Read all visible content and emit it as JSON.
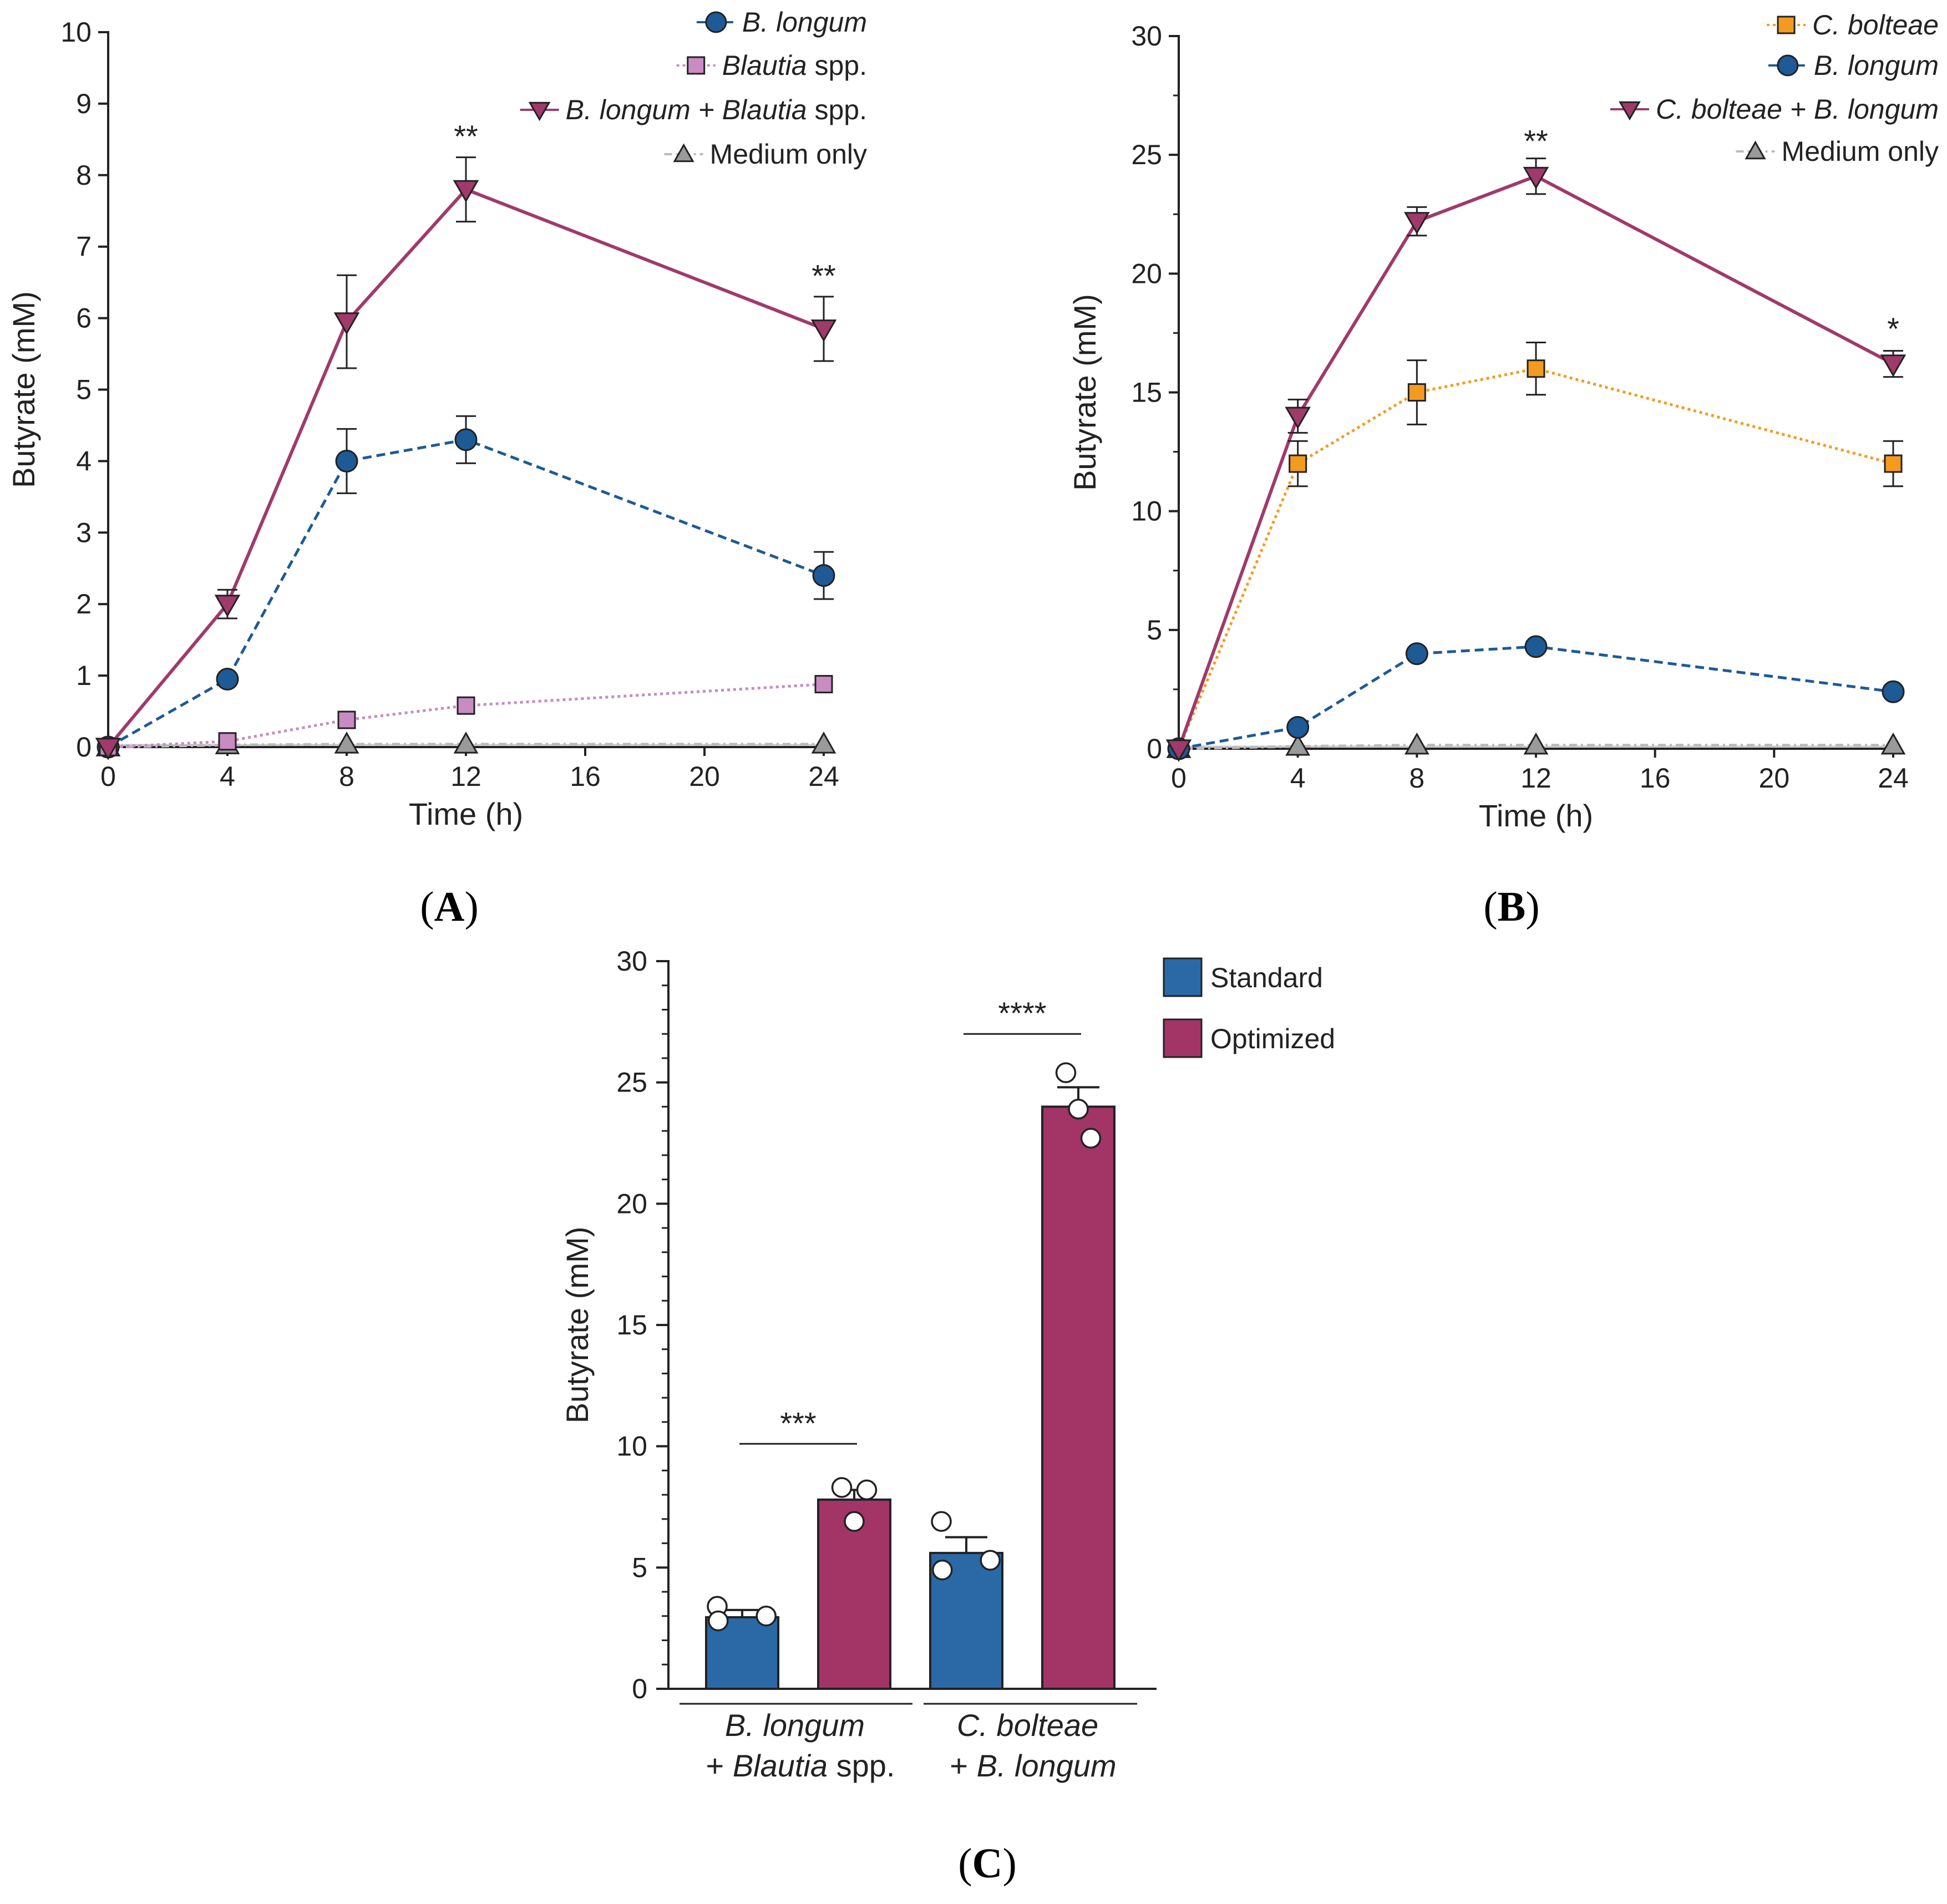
{
  "panels": {
    "A": {
      "label_open": "(",
      "label_letter": "A",
      "label_close": ")"
    },
    "B": {
      "label_open": "(",
      "label_letter": "B",
      "label_close": ")"
    },
    "C": {
      "label_open": "(",
      "label_letter": "C",
      "label_close": ")"
    }
  },
  "chart_data": [
    {
      "panel": "A",
      "type": "line",
      "xlabel": "Time (h)",
      "ylabel": "Butyrate (mM)",
      "xlim": [
        0,
        24
      ],
      "ylim": [
        0,
        10
      ],
      "xticks": [
        0,
        4,
        8,
        12,
        16,
        20,
        24
      ],
      "yticks": [
        0,
        1,
        2,
        3,
        4,
        5,
        6,
        7,
        8,
        9,
        10
      ],
      "legend_position": "top-right",
      "x": [
        0,
        4,
        8,
        12,
        24
      ],
      "series": [
        {
          "name_italic": "B. longum",
          "name_rest": "",
          "marker": "circle",
          "color": "#1d5a96",
          "dash": "dashed",
          "values": [
            0,
            0.95,
            4.0,
            4.3,
            2.4
          ],
          "errors": [
            0,
            0,
            0.45,
            0.33,
            0.33
          ]
        },
        {
          "name_italic": "Blautia",
          "name_rest": " spp.",
          "marker": "square",
          "color": "#c88bc2",
          "dash": "dotted",
          "values": [
            0,
            0.08,
            0.38,
            0.58,
            0.88
          ],
          "errors": [
            0,
            0,
            0,
            0,
            0
          ]
        },
        {
          "name_italic": "B. longum + Blautia",
          "name_rest": " spp.",
          "marker": "triangle-down",
          "color": "#a03a6a",
          "dash": "solid",
          "values": [
            0,
            2.0,
            5.95,
            7.8,
            5.85
          ],
          "errors": [
            0,
            0.2,
            0.65,
            0.45,
            0.45
          ]
        },
        {
          "name_italic": "",
          "name_rest": "Medium only",
          "marker": "triangle-up",
          "color": "#9a9a9a",
          "dash": "dashdot",
          "values": [
            0,
            0.03,
            0.04,
            0.04,
            0.04
          ],
          "errors": [
            0,
            0,
            0,
            0,
            0
          ]
        }
      ],
      "annotations": [
        {
          "x": 12,
          "y": 8.55,
          "text": "**"
        },
        {
          "x": 24,
          "y": 6.6,
          "text": "**"
        }
      ]
    },
    {
      "panel": "B",
      "type": "line",
      "xlabel": "Time (h)",
      "ylabel": "Butyrate (mM)",
      "xlim": [
        0,
        24
      ],
      "ylim": [
        0,
        30
      ],
      "xticks": [
        0,
        4,
        8,
        12,
        16,
        20,
        24
      ],
      "yticks": [
        0,
        5,
        10,
        15,
        20,
        25,
        30
      ],
      "legend_position": "top-right",
      "x": [
        0,
        4,
        8,
        12,
        24
      ],
      "series": [
        {
          "name_italic": "C. bolteae",
          "name_rest": "",
          "marker": "square",
          "color": "#f49a1e",
          "dash": "dotted",
          "values": [
            0,
            12.0,
            15.0,
            16.0,
            12.0
          ],
          "errors": [
            0,
            0.95,
            1.35,
            1.1,
            0.95
          ]
        },
        {
          "name_italic": "B. longum",
          "name_rest": "",
          "marker": "circle",
          "color": "#1d5a96",
          "dash": "dashed",
          "values": [
            0,
            0.9,
            4.0,
            4.3,
            2.4
          ],
          "errors": [
            0,
            0,
            0,
            0,
            0
          ]
        },
        {
          "name_italic": "C. bolteae + B. longum",
          "name_rest": "",
          "marker": "triangle-down",
          "color": "#a03a6a",
          "dash": "solid",
          "values": [
            0,
            14.0,
            22.2,
            24.1,
            16.2
          ],
          "errors": [
            0,
            0.7,
            0.6,
            0.75,
            0.55
          ]
        },
        {
          "name_italic": "",
          "name_rest": "Medium only",
          "marker": "triangle-up",
          "color": "#9a9a9a",
          "dash": "dashdot",
          "values": [
            0,
            0.1,
            0.15,
            0.15,
            0.15
          ],
          "errors": [
            0,
            0,
            0,
            0,
            0
          ]
        }
      ],
      "annotations": [
        {
          "x": 12,
          "y": 25.6,
          "text": "**"
        },
        {
          "x": 24,
          "y": 17.7,
          "text": "*"
        }
      ]
    },
    {
      "panel": "C",
      "type": "bar",
      "ylabel": "Butyrate (mM)",
      "ylim": [
        0,
        30
      ],
      "yticks": [
        0,
        5,
        10,
        15,
        20,
        25,
        30
      ],
      "legend_position": "top-right",
      "legend": [
        {
          "name": "Standard",
          "color": "#2a69a6"
        },
        {
          "name": "Optimized",
          "color": "#a33466"
        }
      ],
      "groups": [
        {
          "line1_italic": "B. longum",
          "line1_rest": "",
          "line2_prefix": "+ ",
          "line2_italic": "Blautia",
          "line2_rest": " spp.",
          "bars": [
            {
              "condition": "Standard",
              "value": 2.95,
              "error": 0.3,
              "points": [
                3.4,
                2.8,
                3.0
              ]
            },
            {
              "condition": "Optimized",
              "value": 7.8,
              "error": 0.4,
              "points": [
                8.3,
                6.9,
                8.2
              ]
            }
          ],
          "significance": "***"
        },
        {
          "line1_italic": "C. bolteae",
          "line1_rest": "",
          "line2_prefix": "+ ",
          "line2_italic": "B. longum",
          "line2_rest": "",
          "bars": [
            {
              "condition": "Standard",
              "value": 5.6,
              "error": 0.65,
              "points": [
                6.9,
                4.9,
                5.3
              ]
            },
            {
              "condition": "Optimized",
              "value": 24.0,
              "error": 0.8,
              "points": [
                25.4,
                23.9,
                22.7
              ]
            }
          ],
          "significance": "****"
        }
      ]
    }
  ]
}
